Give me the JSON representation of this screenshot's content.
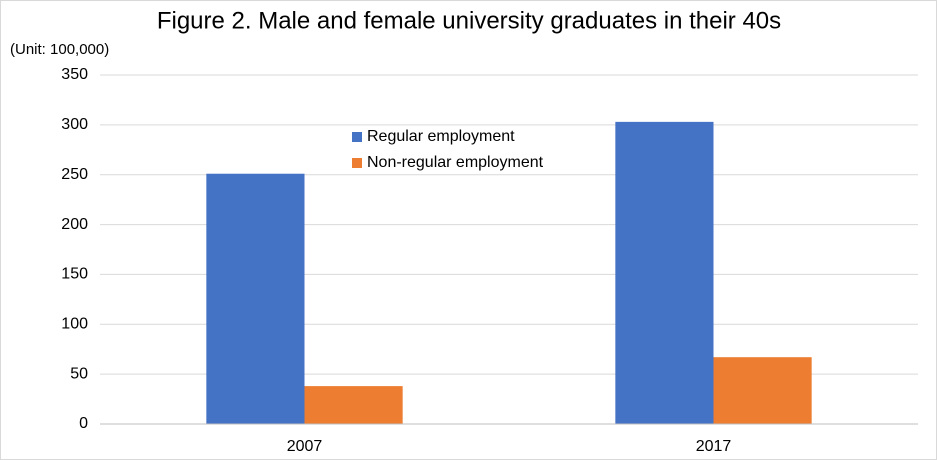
{
  "chart_data": {
    "type": "bar",
    "title": "Figure 2. Male and female university graduates in their 40s",
    "y_axis_label": "(Unit: 100,000)",
    "categories": [
      "2007",
      "2017"
    ],
    "series": [
      {
        "name": "Regular employment",
        "color": "#4472c4",
        "values": [
          251,
          303
        ]
      },
      {
        "name": "Non-regular employment",
        "color": "#ed7d31",
        "values": [
          38,
          67
        ]
      }
    ],
    "ylim": [
      0,
      350
    ],
    "yticks": [
      0,
      50,
      100,
      150,
      200,
      250,
      300,
      350
    ],
    "grid": true,
    "legend": "top"
  }
}
